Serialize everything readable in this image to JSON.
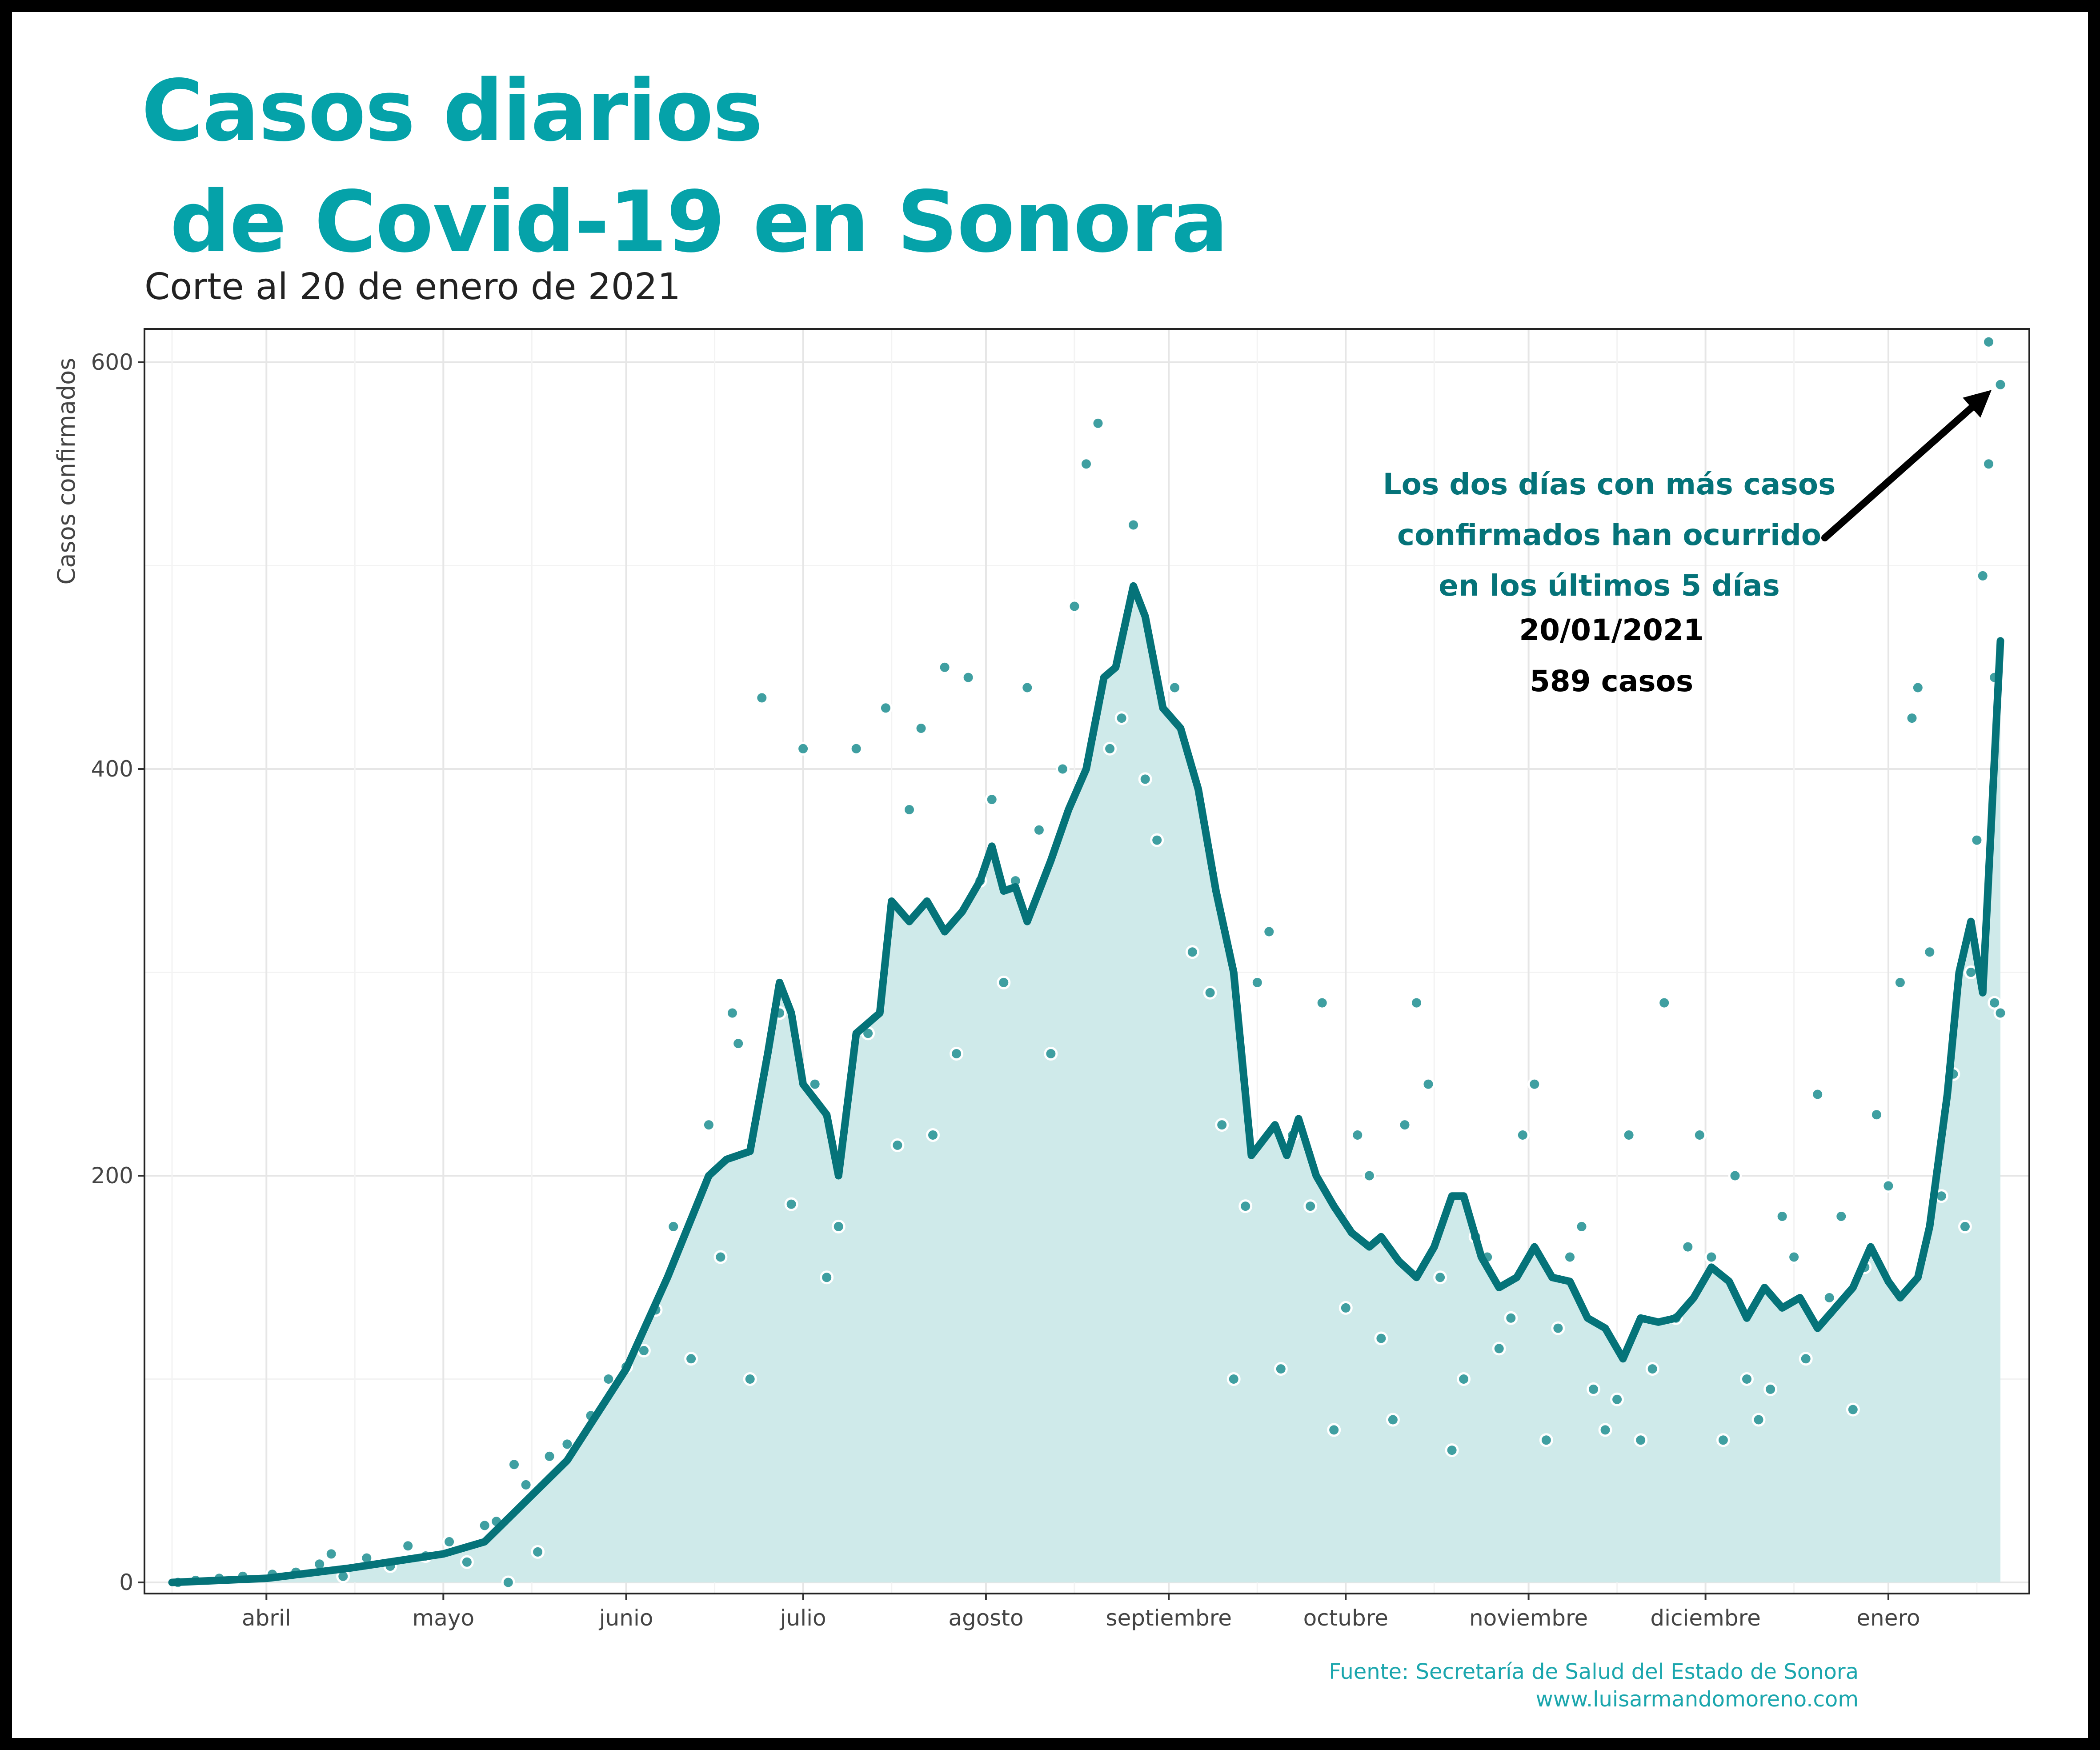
{
  "header": {
    "title": "Casos diarios\n de Covid-19 en Sonora",
    "subtitle": "Corte al 20 de enero de 2021"
  },
  "footer": {
    "source": "Fuente: Secretaría de Salud del Estado de Sonora",
    "website": "www.luisarmandomoreno.com"
  },
  "colors": {
    "title": "#05a2a9",
    "line": "#057379",
    "area": "#cfeaea",
    "points": "#3f9fa1",
    "annotation": "#057379"
  },
  "chart_data": {
    "type": "line",
    "title": "Casos diarios de Covid-19 en Sonora",
    "ylabel": "Casos confirmados",
    "xlabel": "",
    "ylim": [
      0,
      620
    ],
    "yticks": [
      0,
      200,
      400,
      600
    ],
    "grid": true,
    "x_start": "2020-03-16",
    "x_end": "2021-01-20",
    "month_ticks": [
      {
        "label": "abril",
        "date": "2020-04-01"
      },
      {
        "label": "mayo",
        "date": "2020-05-01"
      },
      {
        "label": "junio",
        "date": "2020-06-01"
      },
      {
        "label": "julio",
        "date": "2020-07-01"
      },
      {
        "label": "agosto",
        "date": "2020-08-01"
      },
      {
        "label": "septiembre",
        "date": "2020-09-01"
      },
      {
        "label": "octubre",
        "date": "2020-10-01"
      },
      {
        "label": "noviembre",
        "date": "2020-11-01"
      },
      {
        "label": "diciembre",
        "date": "2020-12-01"
      },
      {
        "label": "enero",
        "date": "2021-01-01"
      }
    ],
    "series": [
      {
        "kind": "rolling-average",
        "anchors": [
          [
            "2020-03-16",
            0
          ],
          [
            "2020-04-01",
            2
          ],
          [
            "2020-04-15",
            7
          ],
          [
            "2020-05-01",
            14
          ],
          [
            "2020-05-08",
            20
          ],
          [
            "2020-05-15",
            40
          ],
          [
            "2020-05-22",
            60
          ],
          [
            "2020-06-01",
            105
          ],
          [
            "2020-06-08",
            150
          ],
          [
            "2020-06-15",
            200
          ],
          [
            "2020-06-18",
            208
          ],
          [
            "2020-06-22",
            212
          ],
          [
            "2020-06-25",
            260
          ],
          [
            "2020-06-27",
            295
          ],
          [
            "2020-06-29",
            280
          ],
          [
            "2020-07-01",
            245
          ],
          [
            "2020-07-05",
            230
          ],
          [
            "2020-07-07",
            200
          ],
          [
            "2020-07-10",
            270
          ],
          [
            "2020-07-14",
            280
          ],
          [
            "2020-07-16",
            335
          ],
          [
            "2020-07-19",
            325
          ],
          [
            "2020-07-22",
            335
          ],
          [
            "2020-07-25",
            320
          ],
          [
            "2020-07-28",
            330
          ],
          [
            "2020-07-31",
            345
          ],
          [
            "2020-08-02",
            362
          ],
          [
            "2020-08-04",
            340
          ],
          [
            "2020-08-06",
            342
          ],
          [
            "2020-08-08",
            325
          ],
          [
            "2020-08-10",
            340
          ],
          [
            "2020-08-12",
            355
          ],
          [
            "2020-08-15",
            380
          ],
          [
            "2020-08-18",
            400
          ],
          [
            "2020-08-21",
            445
          ],
          [
            "2020-08-23",
            450
          ],
          [
            "2020-08-26",
            490
          ],
          [
            "2020-08-28",
            475
          ],
          [
            "2020-08-31",
            430
          ],
          [
            "2020-09-03",
            420
          ],
          [
            "2020-09-06",
            390
          ],
          [
            "2020-09-09",
            340
          ],
          [
            "2020-09-12",
            300
          ],
          [
            "2020-09-15",
            210
          ],
          [
            "2020-09-19",
            225
          ],
          [
            "2020-09-21",
            210
          ],
          [
            "2020-09-23",
            228
          ],
          [
            "2020-09-26",
            200
          ],
          [
            "2020-09-29",
            185
          ],
          [
            "2020-10-02",
            172
          ],
          [
            "2020-10-05",
            165
          ],
          [
            "2020-10-07",
            170
          ],
          [
            "2020-10-10",
            158
          ],
          [
            "2020-10-13",
            150
          ],
          [
            "2020-10-16",
            165
          ],
          [
            "2020-10-19",
            190
          ],
          [
            "2020-10-21",
            190
          ],
          [
            "2020-10-24",
            160
          ],
          [
            "2020-10-27",
            145
          ],
          [
            "2020-10-30",
            150
          ],
          [
            "2020-11-02",
            165
          ],
          [
            "2020-11-05",
            150
          ],
          [
            "2020-11-08",
            148
          ],
          [
            "2020-11-11",
            130
          ],
          [
            "2020-11-14",
            125
          ],
          [
            "2020-11-17",
            110
          ],
          [
            "2020-11-20",
            130
          ],
          [
            "2020-11-23",
            128
          ],
          [
            "2020-11-26",
            130
          ],
          [
            "2020-11-29",
            140
          ],
          [
            "2020-12-02",
            155
          ],
          [
            "2020-12-05",
            148
          ],
          [
            "2020-12-08",
            130
          ],
          [
            "2020-12-11",
            145
          ],
          [
            "2020-12-14",
            135
          ],
          [
            "2020-12-17",
            140
          ],
          [
            "2020-12-20",
            125
          ],
          [
            "2020-12-23",
            135
          ],
          [
            "2020-12-26",
            145
          ],
          [
            "2020-12-29",
            165
          ],
          [
            "2021-01-01",
            148
          ],
          [
            "2021-01-03",
            140
          ],
          [
            "2021-01-06",
            150
          ],
          [
            "2021-01-08",
            175
          ],
          [
            "2021-01-11",
            240
          ],
          [
            "2021-01-13",
            300
          ],
          [
            "2021-01-15",
            325
          ],
          [
            "2021-01-17",
            290
          ],
          [
            "2021-01-20",
            463
          ]
        ]
      },
      {
        "kind": "daily-points",
        "points": [
          [
            "2020-03-17",
            0
          ],
          [
            "2020-03-20",
            1
          ],
          [
            "2020-03-24",
            2
          ],
          [
            "2020-03-28",
            3
          ],
          [
            "2020-04-02",
            4
          ],
          [
            "2020-04-06",
            5
          ],
          [
            "2020-04-10",
            9
          ],
          [
            "2020-04-12",
            14
          ],
          [
            "2020-04-14",
            3
          ],
          [
            "2020-04-18",
            12
          ],
          [
            "2020-04-22",
            8
          ],
          [
            "2020-04-25",
            18
          ],
          [
            "2020-04-28",
            13
          ],
          [
            "2020-05-02",
            20
          ],
          [
            "2020-05-05",
            10
          ],
          [
            "2020-05-08",
            28
          ],
          [
            "2020-05-10",
            30
          ],
          [
            "2020-05-12",
            0
          ],
          [
            "2020-05-13",
            58
          ],
          [
            "2020-05-15",
            48
          ],
          [
            "2020-05-17",
            15
          ],
          [
            "2020-05-19",
            62
          ],
          [
            "2020-05-22",
            68
          ],
          [
            "2020-05-26",
            82
          ],
          [
            "2020-05-29",
            100
          ],
          [
            "2020-06-01",
            106
          ],
          [
            "2020-06-04",
            114
          ],
          [
            "2020-06-06",
            134
          ],
          [
            "2020-06-09",
            175
          ],
          [
            "2020-06-12",
            110
          ],
          [
            "2020-06-15",
            225
          ],
          [
            "2020-06-17",
            160
          ],
          [
            "2020-06-19",
            280
          ],
          [
            "2020-06-20",
            265
          ],
          [
            "2020-06-22",
            100
          ],
          [
            "2020-06-24",
            435
          ],
          [
            "2020-06-27",
            280
          ],
          [
            "2020-06-29",
            186
          ],
          [
            "2020-07-01",
            410
          ],
          [
            "2020-07-03",
            245
          ],
          [
            "2020-07-05",
            150
          ],
          [
            "2020-07-07",
            175
          ],
          [
            "2020-07-10",
            410
          ],
          [
            "2020-07-12",
            270
          ],
          [
            "2020-07-15",
            430
          ],
          [
            "2020-07-17",
            215
          ],
          [
            "2020-07-19",
            380
          ],
          [
            "2020-07-21",
            420
          ],
          [
            "2020-07-23",
            220
          ],
          [
            "2020-07-25",
            450
          ],
          [
            "2020-07-27",
            260
          ],
          [
            "2020-07-29",
            445
          ],
          [
            "2020-07-31",
            345
          ],
          [
            "2020-08-02",
            385
          ],
          [
            "2020-08-04",
            295
          ],
          [
            "2020-08-06",
            345
          ],
          [
            "2020-08-08",
            440
          ],
          [
            "2020-08-10",
            370
          ],
          [
            "2020-08-12",
            260
          ],
          [
            "2020-08-14",
            400
          ],
          [
            "2020-08-16",
            480
          ],
          [
            "2020-08-18",
            550
          ],
          [
            "2020-08-20",
            570
          ],
          [
            "2020-08-22",
            410
          ],
          [
            "2020-08-24",
            425
          ],
          [
            "2020-08-26",
            520
          ],
          [
            "2020-08-28",
            395
          ],
          [
            "2020-08-30",
            365
          ],
          [
            "2020-09-02",
            440
          ],
          [
            "2020-09-05",
            310
          ],
          [
            "2020-09-08",
            290
          ],
          [
            "2020-09-10",
            225
          ],
          [
            "2020-09-12",
            100
          ],
          [
            "2020-09-14",
            185
          ],
          [
            "2020-09-16",
            295
          ],
          [
            "2020-09-18",
            320
          ],
          [
            "2020-09-20",
            105
          ],
          [
            "2020-09-22",
            220
          ],
          [
            "2020-09-25",
            185
          ],
          [
            "2020-09-27",
            285
          ],
          [
            "2020-09-29",
            75
          ],
          [
            "2020-10-01",
            135
          ],
          [
            "2020-10-03",
            220
          ],
          [
            "2020-10-05",
            200
          ],
          [
            "2020-10-07",
            120
          ],
          [
            "2020-10-09",
            80
          ],
          [
            "2020-10-11",
            225
          ],
          [
            "2020-10-13",
            285
          ],
          [
            "2020-10-15",
            245
          ],
          [
            "2020-10-17",
            150
          ],
          [
            "2020-10-19",
            65
          ],
          [
            "2020-10-21",
            100
          ],
          [
            "2020-10-23",
            170
          ],
          [
            "2020-10-25",
            160
          ],
          [
            "2020-10-27",
            115
          ],
          [
            "2020-10-29",
            130
          ],
          [
            "2020-10-31",
            220
          ],
          [
            "2020-11-02",
            245
          ],
          [
            "2020-11-04",
            70
          ],
          [
            "2020-11-06",
            125
          ],
          [
            "2020-11-08",
            160
          ],
          [
            "2020-11-10",
            175
          ],
          [
            "2020-11-12",
            95
          ],
          [
            "2020-11-14",
            75
          ],
          [
            "2020-11-16",
            90
          ],
          [
            "2020-11-18",
            220
          ],
          [
            "2020-11-20",
            70
          ],
          [
            "2020-11-22",
            105
          ],
          [
            "2020-11-24",
            285
          ],
          [
            "2020-11-26",
            130
          ],
          [
            "2020-11-28",
            165
          ],
          [
            "2020-11-30",
            220
          ],
          [
            "2020-12-02",
            160
          ],
          [
            "2020-12-04",
            70
          ],
          [
            "2020-12-06",
            200
          ],
          [
            "2020-12-08",
            100
          ],
          [
            "2020-12-10",
            80
          ],
          [
            "2020-12-12",
            95
          ],
          [
            "2020-12-14",
            180
          ],
          [
            "2020-12-16",
            160
          ],
          [
            "2020-12-18",
            110
          ],
          [
            "2020-12-20",
            240
          ],
          [
            "2020-12-22",
            140
          ],
          [
            "2020-12-24",
            180
          ],
          [
            "2020-12-26",
            85
          ],
          [
            "2020-12-28",
            155
          ],
          [
            "2020-12-30",
            230
          ],
          [
            "2021-01-01",
            195
          ],
          [
            "2021-01-03",
            295
          ],
          [
            "2021-01-05",
            425
          ],
          [
            "2021-01-06",
            440
          ],
          [
            "2021-01-08",
            310
          ],
          [
            "2021-01-10",
            190
          ],
          [
            "2021-01-12",
            250
          ],
          [
            "2021-01-14",
            175
          ],
          [
            "2021-01-15",
            300
          ],
          [
            "2021-01-16",
            365
          ],
          [
            "2021-01-17",
            495
          ],
          [
            "2021-01-18",
            550
          ],
          [
            "2021-01-18",
            610
          ],
          [
            "2021-01-19",
            285
          ],
          [
            "2021-01-19",
            445
          ],
          [
            "2021-01-20",
            280
          ],
          [
            "2021-01-20",
            589
          ]
        ]
      }
    ],
    "annotation": {
      "text_lines": [
        "Los dos días con más casos",
        "confirmados han ocurrido",
        "en los últimos 5 días"
      ],
      "date_label": "20/01/2021",
      "value_label": "589 casos",
      "arrow_to": [
        "2021-01-20",
        589
      ]
    }
  }
}
